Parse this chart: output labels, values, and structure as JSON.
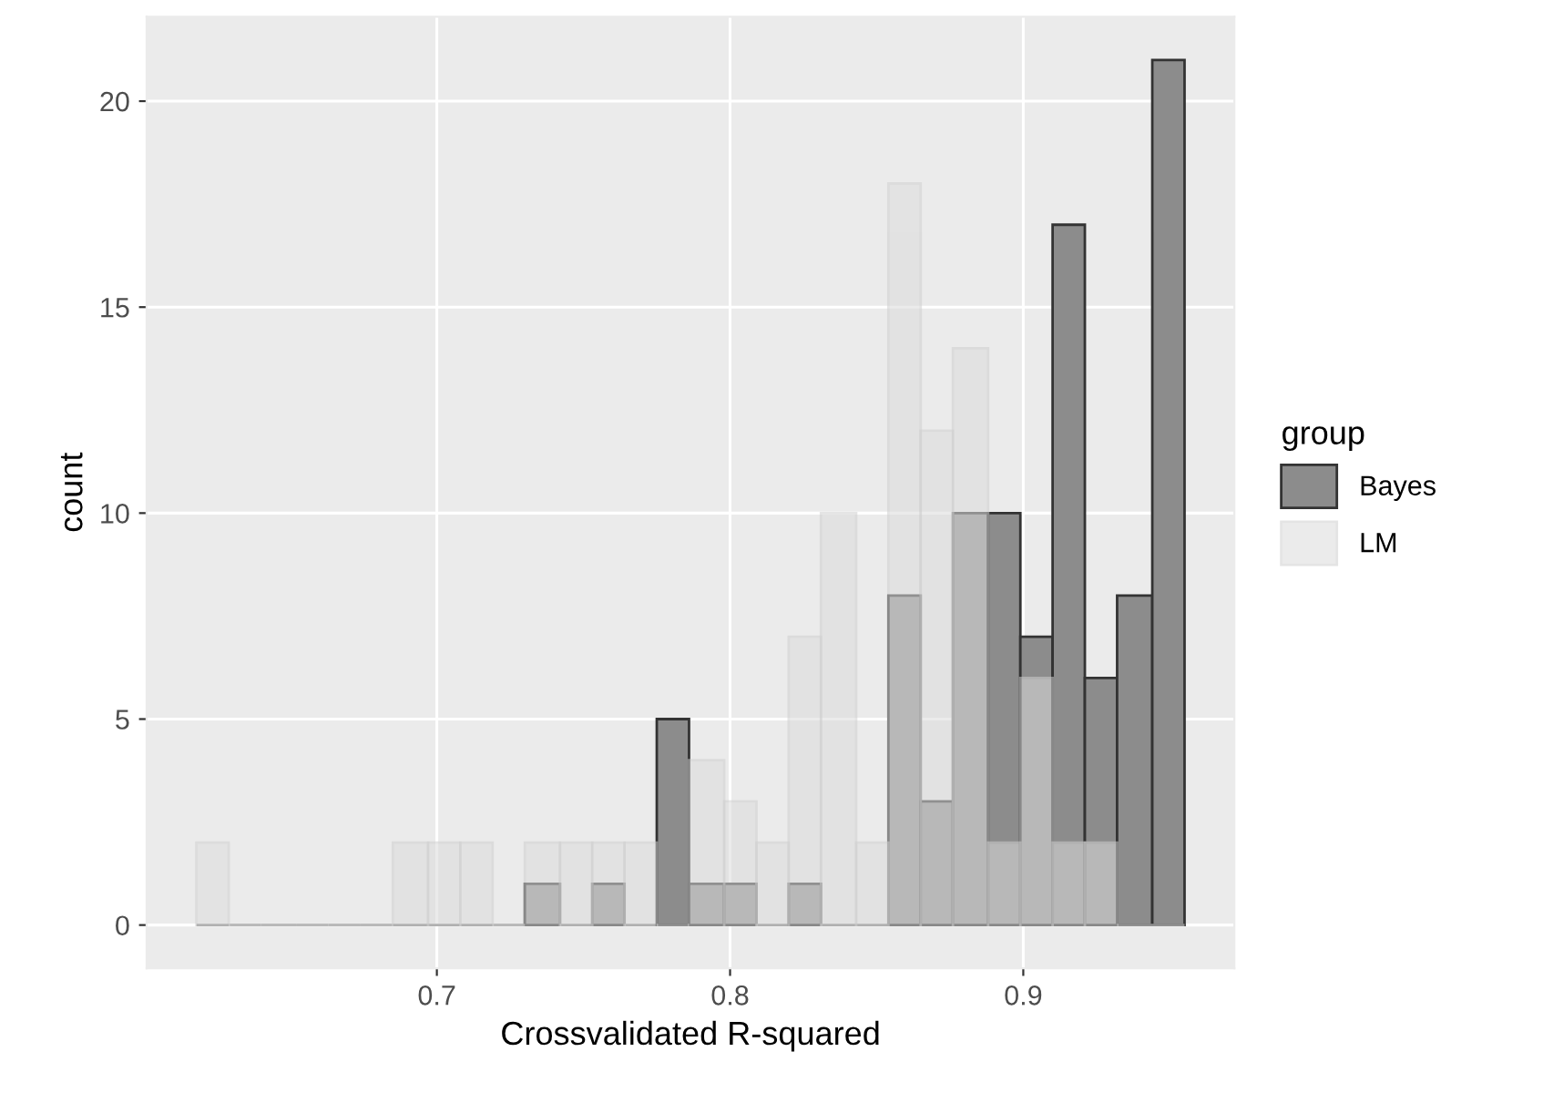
{
  "chart_data": {
    "type": "histogram",
    "xlabel": "Crossvalidated R-squared",
    "ylabel": "count",
    "legend_title": "group",
    "bins": [
      0.618,
      0.629,
      0.64,
      0.652,
      0.663,
      0.674,
      0.685,
      0.697,
      0.708,
      0.719,
      0.73,
      0.742,
      0.753,
      0.764,
      0.775,
      0.786,
      0.798,
      0.809,
      0.82,
      0.831,
      0.843,
      0.854,
      0.865,
      0.876,
      0.888,
      0.899,
      0.91,
      0.921,
      0.932,
      0.944,
      0.955
    ],
    "series": [
      {
        "name": "Bayes",
        "color": "#8c8c8c",
        "values": [
          0,
          0,
          0,
          0,
          0,
          0,
          0,
          0,
          0,
          0,
          1,
          0,
          1,
          0,
          5,
          1,
          1,
          0,
          1,
          0,
          0,
          8,
          3,
          10,
          10,
          7,
          17,
          6,
          8,
          21
        ]
      },
      {
        "name": "LM",
        "color": "#dcdcdc",
        "values": [
          2,
          0,
          0,
          0,
          0,
          0,
          2,
          2,
          2,
          0,
          2,
          2,
          2,
          2,
          0,
          4,
          3,
          2,
          7,
          10,
          2,
          18,
          12,
          14,
          2,
          6,
          2,
          2,
          0,
          0
        ]
      }
    ],
    "xlim": [
      0.601,
      0.972
    ],
    "ylim": [
      -1.05,
      22.05
    ],
    "xticks": [
      0.7,
      0.8,
      0.9
    ],
    "yticks": [
      0,
      5,
      10,
      15,
      20
    ],
    "grid": true,
    "legend": "right"
  }
}
